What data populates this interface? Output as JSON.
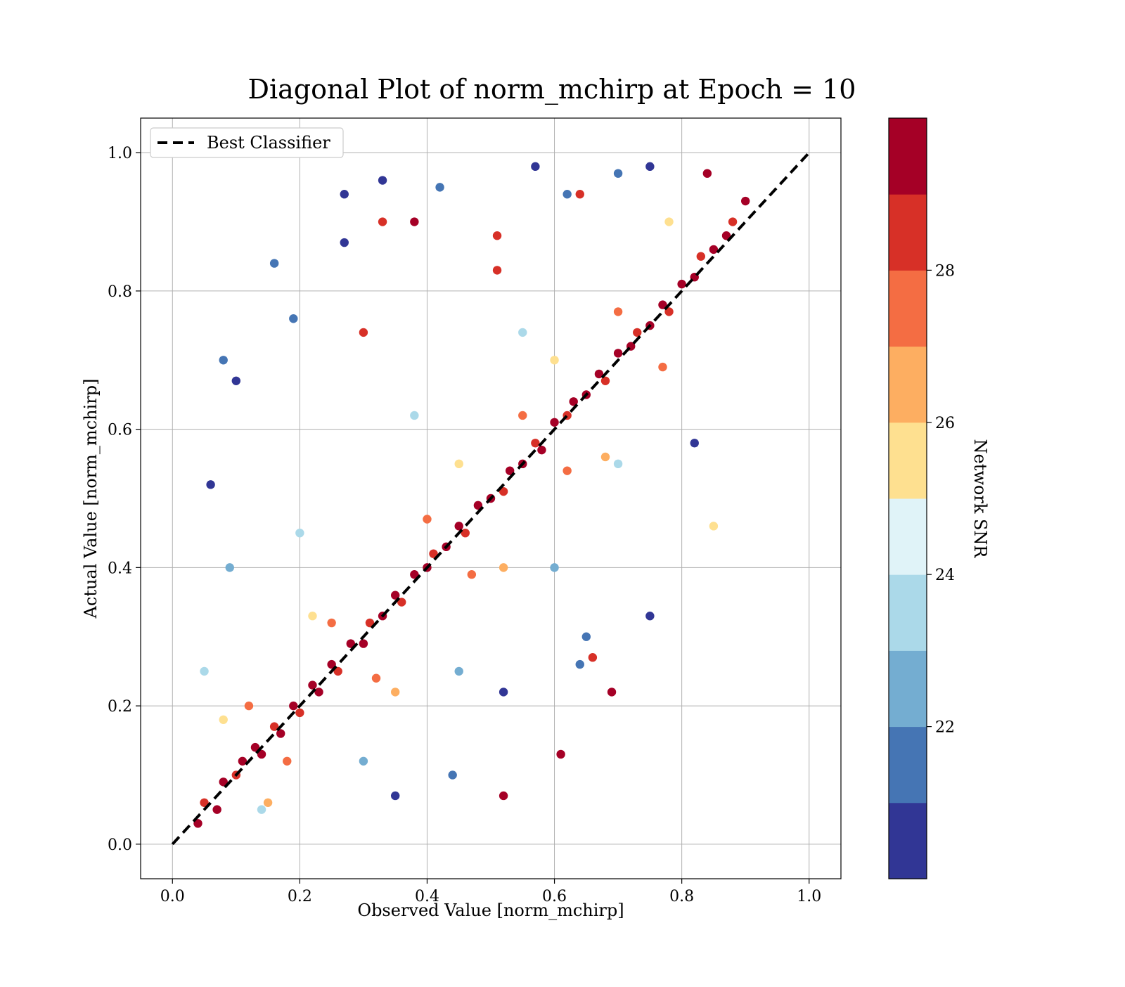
{
  "chart_data": {
    "type": "scatter",
    "title": "Diagonal Plot of norm_mchirp at Epoch = 10",
    "xlabel": "Observed Value [norm_mchirp]",
    "ylabel": "Actual Value [norm_mchirp]",
    "xlim": [
      -0.05,
      1.05
    ],
    "ylim": [
      -0.05,
      1.05
    ],
    "xticks": [
      0.0,
      0.2,
      0.4,
      0.6,
      0.8,
      1.0
    ],
    "yticks": [
      0.0,
      0.2,
      0.4,
      0.6,
      0.8,
      1.0
    ],
    "xtick_labels": [
      "0.0",
      "0.2",
      "0.4",
      "0.6",
      "0.8",
      "1.0"
    ],
    "ytick_labels": [
      "0.0",
      "0.2",
      "0.4",
      "0.6",
      "0.8",
      "1.0"
    ],
    "grid": true,
    "legend": {
      "position": "top-left",
      "entries": [
        "Best Classifier"
      ]
    },
    "reference_line": {
      "name": "Best Classifier",
      "style": "dashed",
      "color": "#000000",
      "points": [
        [
          0.0,
          0.0
        ],
        [
          1.0,
          1.0
        ]
      ]
    },
    "colorbar": {
      "label": "Network SNR",
      "range": [
        20,
        30
      ],
      "ticks": [
        22,
        24,
        26,
        28
      ],
      "tick_labels": [
        "22",
        "24",
        "26",
        "28"
      ],
      "bins": 10,
      "colormap": [
        "#313695",
        "#4575b4",
        "#74add1",
        "#abd9e9",
        "#e0f3f8",
        "#fee090",
        "#fdae61",
        "#f46d43",
        "#d73027",
        "#a50026"
      ]
    },
    "scatter_notes": "Dense cloud of points along the diagonal y = x, roughly 0.0 to 1.0 on both axes; high-SNR (dark red) points concentrate tightly on the diagonal, low-SNR (blue) points spread widely, especially below 0.5 observed.",
    "points": [
      [
        0.04,
        0.03,
        29.5
      ],
      [
        0.05,
        0.06,
        28.6
      ],
      [
        0.07,
        0.05,
        29.2
      ],
      [
        0.08,
        0.09,
        29.8
      ],
      [
        0.1,
        0.1,
        28.9
      ],
      [
        0.11,
        0.12,
        29.6
      ],
      [
        0.13,
        0.14,
        29.1
      ],
      [
        0.14,
        0.13,
        29.7
      ],
      [
        0.16,
        0.17,
        28.4
      ],
      [
        0.17,
        0.16,
        29.9
      ],
      [
        0.19,
        0.2,
        29.3
      ],
      [
        0.2,
        0.19,
        28.7
      ],
      [
        0.22,
        0.23,
        29.5
      ],
      [
        0.23,
        0.22,
        29.0
      ],
      [
        0.25,
        0.26,
        29.8
      ],
      [
        0.26,
        0.25,
        28.5
      ],
      [
        0.28,
        0.29,
        29.4
      ],
      [
        0.3,
        0.29,
        29.9
      ],
      [
        0.31,
        0.32,
        28.8
      ],
      [
        0.33,
        0.33,
        29.6
      ],
      [
        0.35,
        0.36,
        29.2
      ],
      [
        0.36,
        0.35,
        28.3
      ],
      [
        0.38,
        0.39,
        29.7
      ],
      [
        0.4,
        0.4,
        29.1
      ],
      [
        0.41,
        0.42,
        28.9
      ],
      [
        0.43,
        0.43,
        29.5
      ],
      [
        0.45,
        0.46,
        29.8
      ],
      [
        0.46,
        0.45,
        28.6
      ],
      [
        0.48,
        0.49,
        29.3
      ],
      [
        0.5,
        0.5,
        29.9
      ],
      [
        0.52,
        0.51,
        28.7
      ],
      [
        0.53,
        0.54,
        29.4
      ],
      [
        0.55,
        0.55,
        29.6
      ],
      [
        0.57,
        0.58,
        28.8
      ],
      [
        0.58,
        0.57,
        29.2
      ],
      [
        0.6,
        0.61,
        29.7
      ],
      [
        0.62,
        0.62,
        28.5
      ],
      [
        0.63,
        0.64,
        29.9
      ],
      [
        0.65,
        0.65,
        29.0
      ],
      [
        0.67,
        0.68,
        29.5
      ],
      [
        0.68,
        0.67,
        28.4
      ],
      [
        0.7,
        0.71,
        29.8
      ],
      [
        0.72,
        0.72,
        29.1
      ],
      [
        0.73,
        0.74,
        28.9
      ],
      [
        0.75,
        0.75,
        29.6
      ],
      [
        0.77,
        0.78,
        29.3
      ],
      [
        0.78,
        0.77,
        28.6
      ],
      [
        0.8,
        0.81,
        29.7
      ],
      [
        0.82,
        0.82,
        29.2
      ],
      [
        0.83,
        0.85,
        28.8
      ],
      [
        0.85,
        0.86,
        29.5
      ],
      [
        0.87,
        0.88,
        29.9
      ],
      [
        0.88,
        0.9,
        28.7
      ],
      [
        0.9,
        0.93,
        29.4
      ],
      [
        0.84,
        0.97,
        29.0
      ],
      [
        0.12,
        0.2,
        27.5
      ],
      [
        0.18,
        0.12,
        27.8
      ],
      [
        0.25,
        0.32,
        27.2
      ],
      [
        0.32,
        0.24,
        27.9
      ],
      [
        0.4,
        0.47,
        27.4
      ],
      [
        0.47,
        0.39,
        27.6
      ],
      [
        0.55,
        0.62,
        27.1
      ],
      [
        0.62,
        0.54,
        27.8
      ],
      [
        0.7,
        0.77,
        27.3
      ],
      [
        0.77,
        0.69,
        27.7
      ],
      [
        0.08,
        0.18,
        25.5
      ],
      [
        0.15,
        0.06,
        26.3
      ],
      [
        0.22,
        0.33,
        25.8
      ],
      [
        0.35,
        0.22,
        26.6
      ],
      [
        0.45,
        0.55,
        25.3
      ],
      [
        0.52,
        0.4,
        26.1
      ],
      [
        0.6,
        0.7,
        25.7
      ],
      [
        0.68,
        0.56,
        26.4
      ],
      [
        0.78,
        0.9,
        25.9
      ],
      [
        0.85,
        0.46,
        25.6
      ],
      [
        0.05,
        0.25,
        23.5
      ],
      [
        0.09,
        0.4,
        22.8
      ],
      [
        0.14,
        0.05,
        23.9
      ],
      [
        0.2,
        0.45,
        23.2
      ],
      [
        0.3,
        0.12,
        22.5
      ],
      [
        0.38,
        0.62,
        23.7
      ],
      [
        0.45,
        0.25,
        22.3
      ],
      [
        0.55,
        0.74,
        23.4
      ],
      [
        0.6,
        0.4,
        22.9
      ],
      [
        0.7,
        0.55,
        23.1
      ],
      [
        0.06,
        0.52,
        20.8
      ],
      [
        0.08,
        0.7,
        21.2
      ],
      [
        0.1,
        0.67,
        20.4
      ],
      [
        0.16,
        0.84,
        21.7
      ],
      [
        0.27,
        0.94,
        20.6
      ],
      [
        0.33,
        0.96,
        20.9
      ],
      [
        0.42,
        0.95,
        21.4
      ],
      [
        0.57,
        0.98,
        20.5
      ],
      [
        0.7,
        0.97,
        21.0
      ],
      [
        0.75,
        0.98,
        20.7
      ],
      [
        0.62,
        0.94,
        21.3
      ],
      [
        0.27,
        0.87,
        20.2
      ],
      [
        0.19,
        0.76,
        21.5
      ],
      [
        0.35,
        0.07,
        20.9
      ],
      [
        0.44,
        0.1,
        21.1
      ],
      [
        0.52,
        0.22,
        20.6
      ],
      [
        0.65,
        0.3,
        21.8
      ],
      [
        0.75,
        0.33,
        20.3
      ],
      [
        0.64,
        0.26,
        21.6
      ],
      [
        0.82,
        0.58,
        20.8
      ],
      [
        0.52,
        0.07,
        29.4
      ],
      [
        0.61,
        0.13,
        29.7
      ],
      [
        0.66,
        0.27,
        28.5
      ],
      [
        0.69,
        0.22,
        29.1
      ],
      [
        0.33,
        0.9,
        28.3
      ],
      [
        0.38,
        0.9,
        29.2
      ],
      [
        0.51,
        0.88,
        28.4
      ],
      [
        0.64,
        0.94,
        28.6
      ],
      [
        0.3,
        0.74,
        28.2
      ],
      [
        0.51,
        0.83,
        28.8
      ]
    ]
  }
}
